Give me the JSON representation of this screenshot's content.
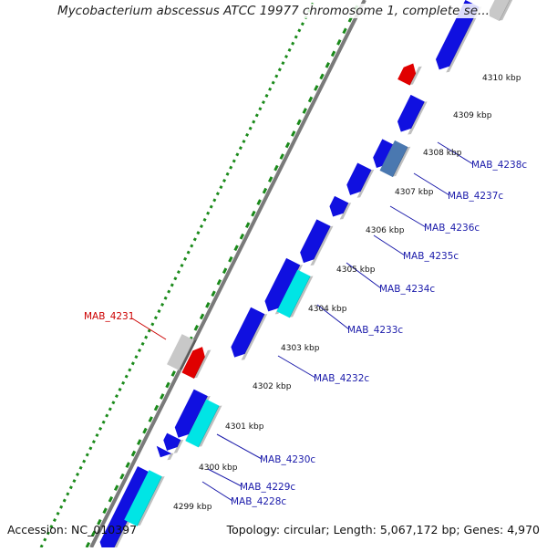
{
  "title": "Mycobacterium abscessus ATCC 19977 chromosome 1, complete se...",
  "accession": "Accession: NC_010397",
  "summary": "Topology: circular; Length: 5,067,172 bp; Genes: 4,970",
  "colors": {
    "backbone": "#7a7a7a",
    "tick_dots": "#1a8a1a",
    "forward_gene": "#1010e0",
    "reverse_gene": "#1010e0",
    "cyan_gene": "#00e5e5",
    "steelblue_gene": "#4a78b0",
    "red_gene": "#e00000",
    "grey_gene": "#c8c8c8",
    "label_blue": "#1a1aaa",
    "label_red": "#cc0000"
  },
  "kbp_ticks": [
    {
      "value": 4299,
      "label": "4299 kbp"
    },
    {
      "value": 4300,
      "label": "4300 kbp"
    },
    {
      "value": 4301,
      "label": "4301 kbp"
    },
    {
      "value": 4302,
      "label": "4302 kbp"
    },
    {
      "value": 4303,
      "label": "4303 kbp"
    },
    {
      "value": 4304,
      "label": "4304 kbp"
    },
    {
      "value": 4305,
      "label": "4305 kbp"
    },
    {
      "value": 4306,
      "label": "4306 kbp"
    },
    {
      "value": 4307,
      "label": "4307 kbp"
    },
    {
      "value": 4308,
      "label": "4308 kbp"
    },
    {
      "value": 4309,
      "label": "4309 kbp"
    },
    {
      "value": 4310,
      "label": "4310 kbp"
    }
  ],
  "gene_labels": [
    {
      "name": "MAB_4228c",
      "color": "label_blue"
    },
    {
      "name": "MAB_4229c",
      "color": "label_blue"
    },
    {
      "name": "MAB_4230c",
      "color": "label_blue"
    },
    {
      "name": "MAB_4232c",
      "color": "label_blue"
    },
    {
      "name": "MAB_4233c",
      "color": "label_blue"
    },
    {
      "name": "MAB_4234c",
      "color": "label_blue"
    },
    {
      "name": "MAB_4235c",
      "color": "label_blue"
    },
    {
      "name": "MAB_4236c",
      "color": "label_blue"
    },
    {
      "name": "MAB_4237c",
      "color": "label_blue"
    },
    {
      "name": "MAB_4238c",
      "color": "label_blue"
    },
    {
      "name": "MAB_4231",
      "color": "label_red"
    }
  ]
}
